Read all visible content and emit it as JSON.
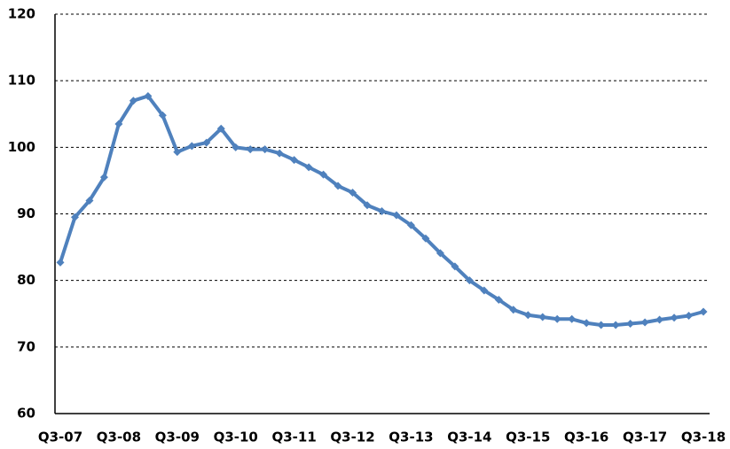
{
  "chart_data": {
    "type": "line",
    "categories": [
      "Q3-07",
      null,
      null,
      null,
      "Q3-08",
      null,
      null,
      null,
      "Q3-09",
      null,
      null,
      null,
      "Q3-10",
      null,
      null,
      null,
      "Q3-11",
      null,
      null,
      null,
      "Q3-12",
      null,
      null,
      null,
      "Q3-13",
      null,
      null,
      null,
      "Q3-14",
      null,
      null,
      null,
      "Q3-15",
      null,
      null,
      null,
      "Q3-16",
      null,
      null,
      null,
      "Q3-17",
      null,
      null,
      null,
      "Q3-18"
    ],
    "values": [
      82.7,
      89.5,
      92,
      95.5,
      103.5,
      107,
      107.7,
      104.8,
      99.3,
      100.2,
      100.7,
      102.8,
      100,
      99.7,
      99.7,
      99.1,
      98.1,
      97,
      95.9,
      94.2,
      93.2,
      91.3,
      90.4,
      89.8,
      88.3,
      86.3,
      84.1,
      82.1,
      80,
      78.5,
      77.1,
      75.6,
      74.8,
      74.5,
      74.2,
      74.2,
      73.6,
      73.3,
      73.3,
      73.5,
      73.7,
      74.1,
      74.4,
      74.7,
      75.3
    ],
    "color": "#4f81bd",
    "ylim": [
      60,
      120
    ],
    "yticks": [
      60,
      70,
      80,
      90,
      100,
      110,
      120
    ],
    "grid": true
  }
}
